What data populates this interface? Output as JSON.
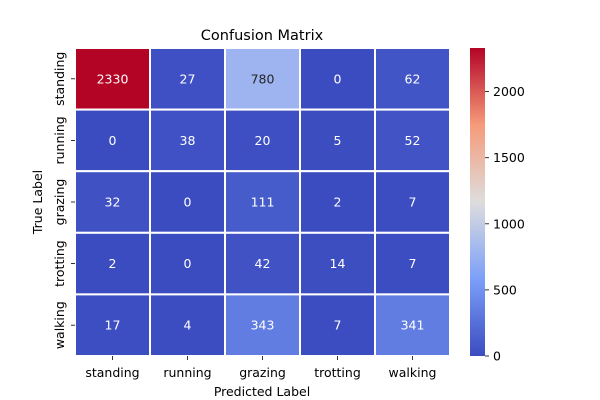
{
  "chart_data": {
    "type": "heatmap",
    "title": "Confusion Matrix",
    "xlabel": "Predicted Label",
    "ylabel": "True Label",
    "x_categories": [
      "standing",
      "running",
      "grazing",
      "trotting",
      "walking"
    ],
    "y_categories": [
      "standing",
      "running",
      "grazing",
      "trotting",
      "walking"
    ],
    "values": [
      [
        2330,
        27,
        780,
        0,
        62
      ],
      [
        0,
        38,
        20,
        5,
        52
      ],
      [
        32,
        0,
        111,
        2,
        7
      ],
      [
        2,
        0,
        42,
        14,
        7
      ],
      [
        17,
        4,
        343,
        7,
        341
      ]
    ],
    "colormap": "coolwarm",
    "color_range": [
      0,
      2330
    ],
    "colorbar_ticks": [
      0,
      500,
      1000,
      1500,
      2000
    ],
    "cell_border_color": "#ffffff"
  }
}
